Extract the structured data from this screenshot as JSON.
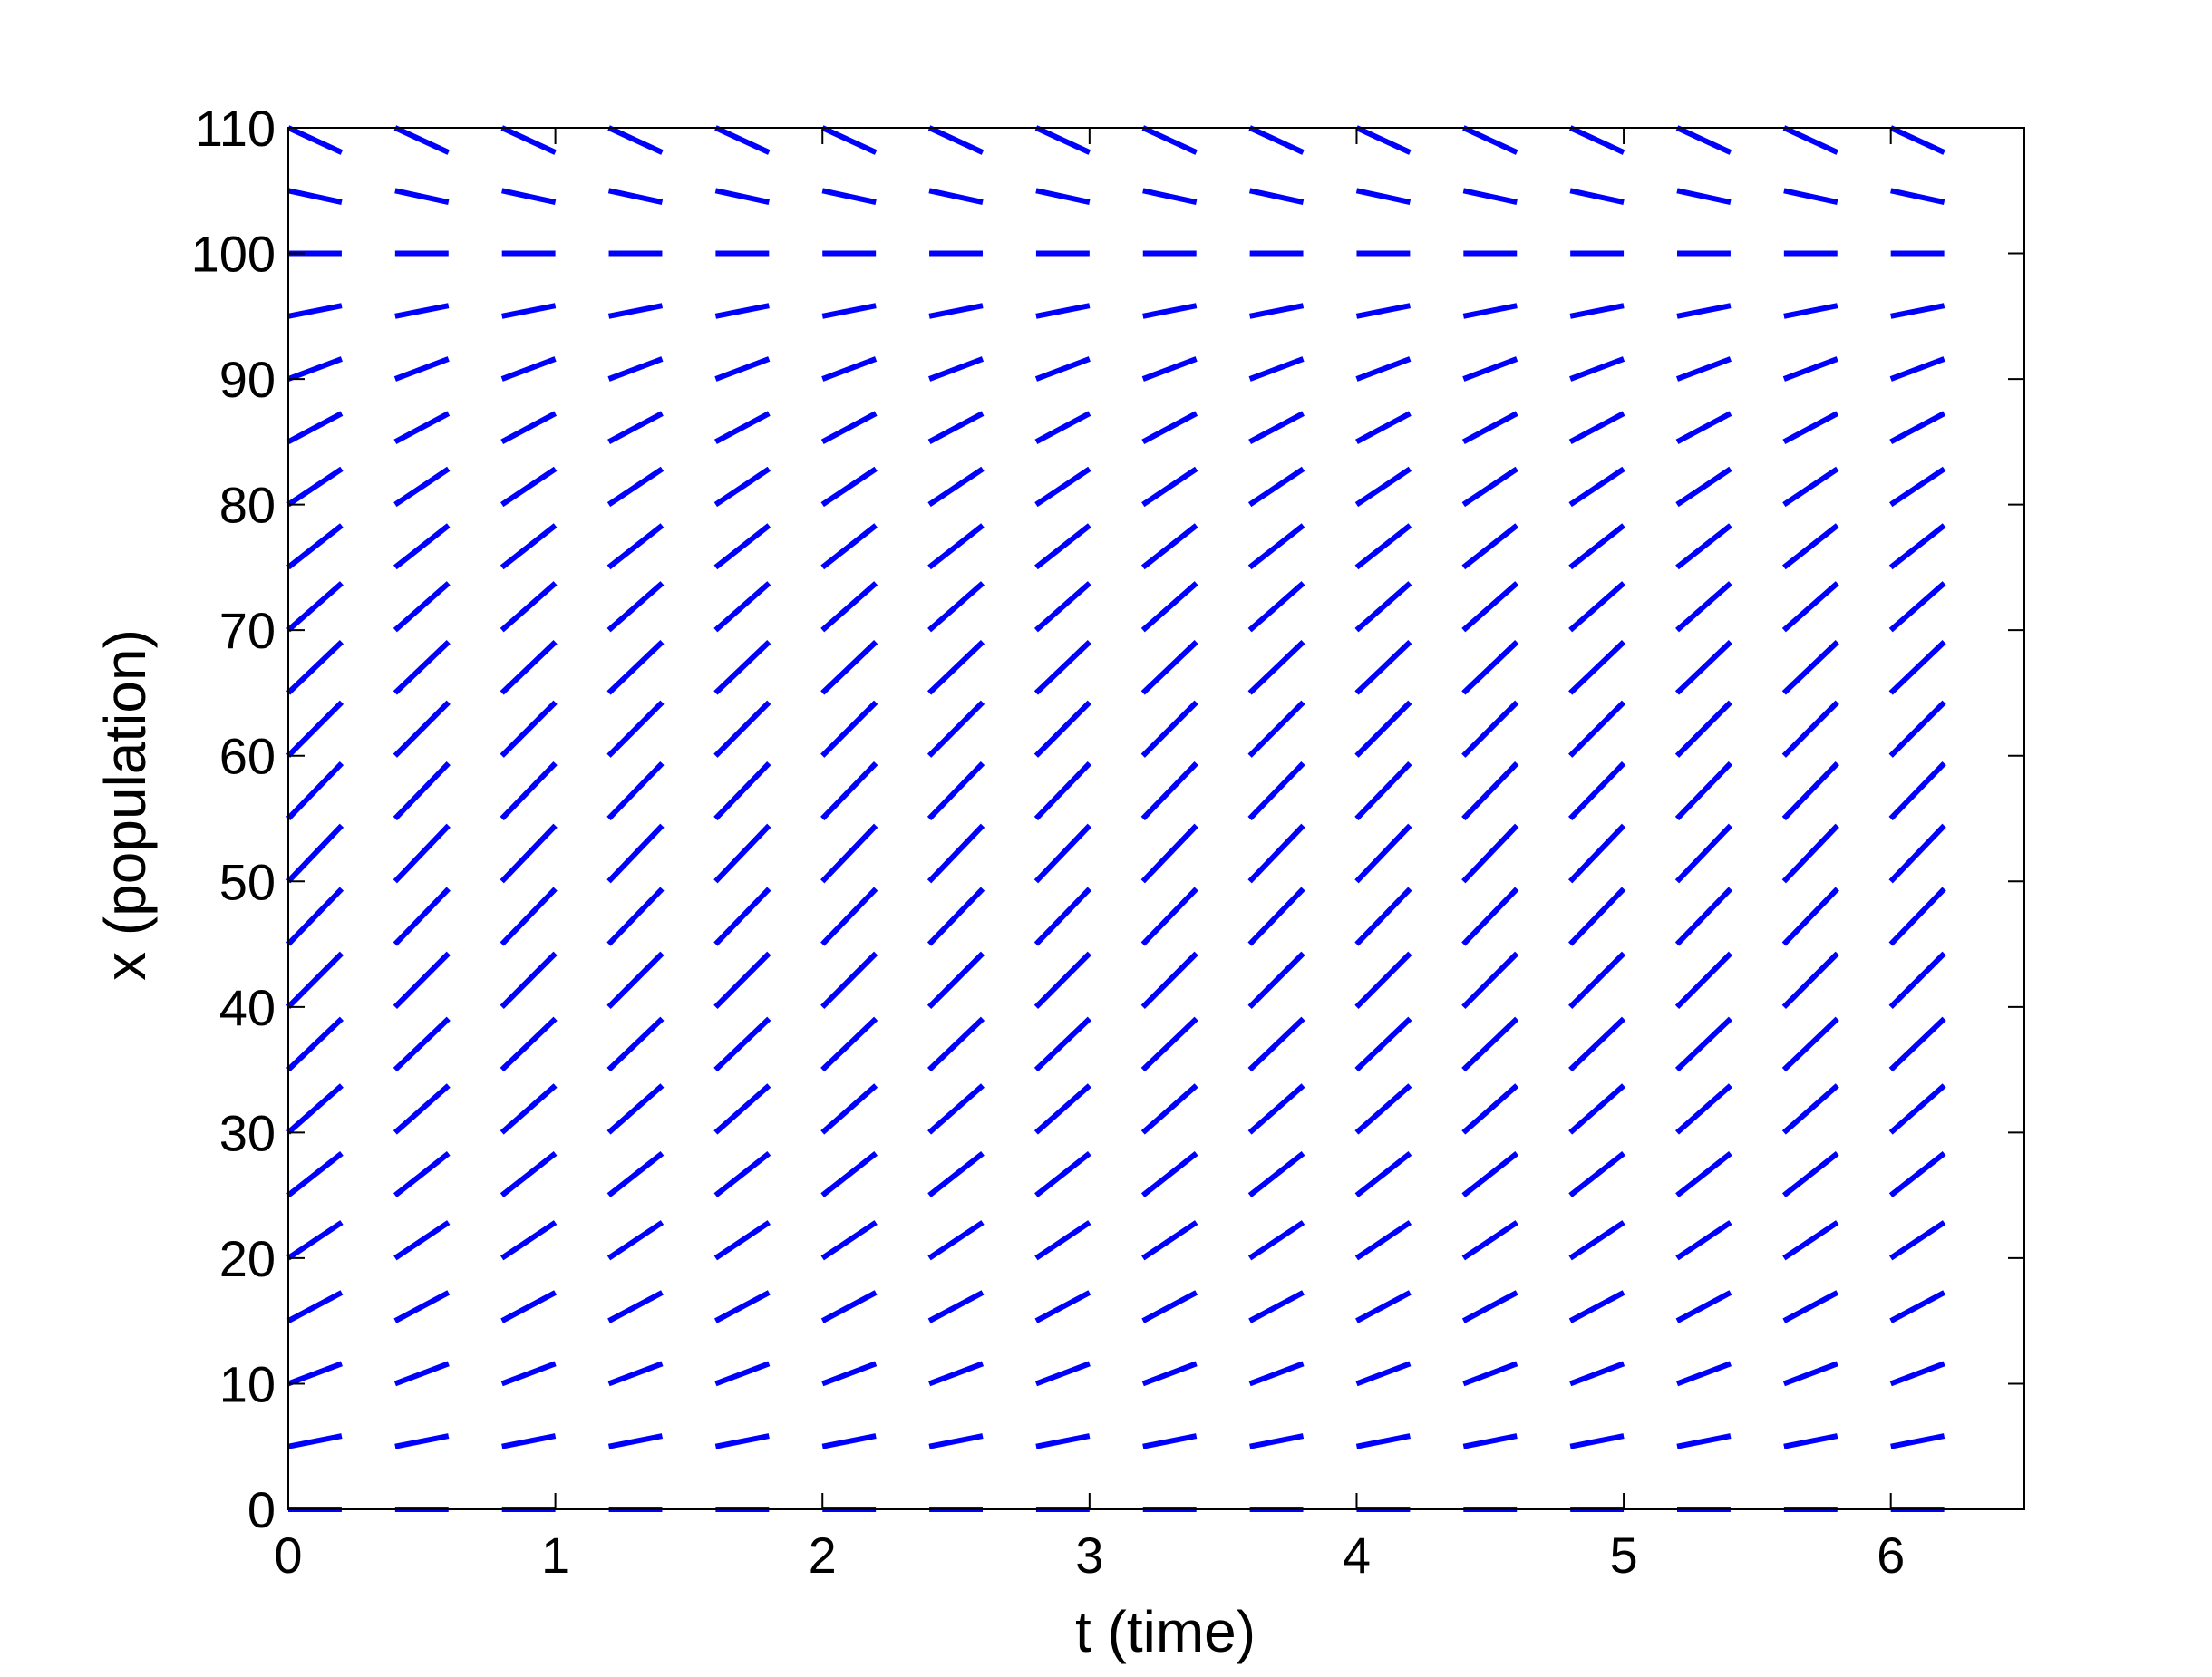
{
  "chart_data": {
    "type": "slope-field",
    "title": "",
    "xlabel": "t (time)",
    "ylabel": "x (population)",
    "xlim": [
      0,
      6.5
    ],
    "ylim": [
      0,
      110
    ],
    "xticks": [
      "0",
      "1",
      "2",
      "3",
      "4",
      "5",
      "6"
    ],
    "yticks": [
      "0",
      "10",
      "20",
      "30",
      "40",
      "50",
      "60",
      "70",
      "80",
      "90",
      "100",
      "110"
    ],
    "t_values": [
      0,
      0.4,
      0.8,
      1.2,
      1.6,
      2.0,
      2.4,
      2.8,
      3.2,
      3.6,
      4.0,
      4.4,
      4.8,
      5.2,
      5.6,
      6.0
    ],
    "x_values": [
      0,
      5,
      10,
      15,
      20,
      25,
      30,
      35,
      40,
      45,
      50,
      55,
      60,
      65,
      70,
      75,
      80,
      85,
      90,
      95,
      100,
      105,
      110
    ],
    "slopes": [
      0,
      4.2,
      8.0,
      11.3,
      14.2,
      16.7,
      18.7,
      20.3,
      21.3,
      22.0,
      22.2,
      22.0,
      21.3,
      20.3,
      18.7,
      16.7,
      14.2,
      11.3,
      8.0,
      4.2,
      0,
      -4.6,
      -9.8
    ],
    "grid": false,
    "legend": "none",
    "colors": {
      "segment": "#0000ff",
      "axis": "#000000",
      "background": "#ffffff"
    }
  }
}
